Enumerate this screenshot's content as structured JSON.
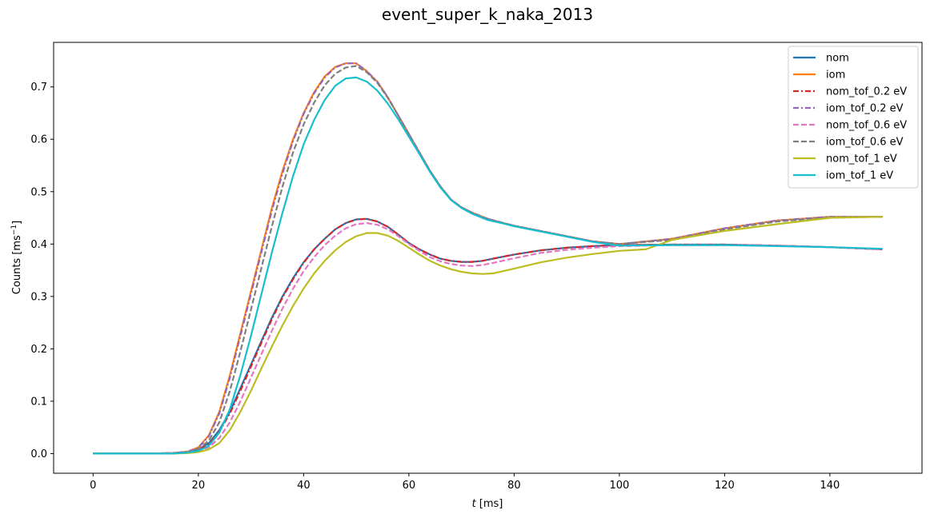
{
  "chart_data": {
    "type": "line",
    "title": "event_super_k_naka_2013",
    "xlabel_var": "t",
    "xlabel_unit": "[ms]",
    "ylabel_main": "Counts [ms",
    "ylabel_exp": "−1",
    "ylabel_close": "]",
    "xlim": [
      -7.5,
      157.5
    ],
    "ylim": [
      -0.0375,
      0.785
    ],
    "xticks": [
      0,
      20,
      40,
      60,
      80,
      100,
      120,
      140
    ],
    "yticks": [
      0.0,
      0.1,
      0.2,
      0.3,
      0.4,
      0.5,
      0.6,
      0.7
    ],
    "ytick_labels": [
      "0.0",
      "0.1",
      "0.2",
      "0.3",
      "0.4",
      "0.5",
      "0.6",
      "0.7"
    ],
    "legend_position": "upper right",
    "grid": false,
    "series": [
      {
        "name": "nom",
        "color": "#1f77b4",
        "dash": "solid",
        "x": [
          0,
          10,
          15,
          18,
          20,
          22,
          24,
          26,
          28,
          30,
          32,
          34,
          36,
          38,
          40,
          42,
          44,
          46,
          48,
          50,
          52,
          54,
          56,
          58,
          60,
          62,
          64,
          66,
          68,
          70,
          72,
          74,
          76,
          80,
          85,
          90,
          95,
          100,
          110,
          120,
          130,
          140,
          150
        ],
        "y": [
          0,
          0,
          0.001,
          0.003,
          0.008,
          0.02,
          0.045,
          0.08,
          0.125,
          0.17,
          0.215,
          0.26,
          0.3,
          0.335,
          0.365,
          0.39,
          0.41,
          0.428,
          0.44,
          0.447,
          0.448,
          0.443,
          0.433,
          0.418,
          0.402,
          0.39,
          0.38,
          0.372,
          0.368,
          0.366,
          0.366,
          0.368,
          0.372,
          0.38,
          0.388,
          0.393,
          0.396,
          0.398,
          0.399,
          0.399,
          0.397,
          0.394,
          0.39
        ]
      },
      {
        "name": "iom",
        "color": "#ff7f0e",
        "dash": "solid",
        "x": [
          0,
          10,
          15,
          18,
          20,
          22,
          24,
          26,
          28,
          30,
          32,
          34,
          36,
          38,
          40,
          42,
          44,
          46,
          48,
          50,
          52,
          54,
          56,
          58,
          60,
          62,
          64,
          66,
          68,
          70,
          72,
          75,
          78,
          80,
          85,
          90,
          95,
          100,
          110,
          120,
          130,
          140,
          150
        ],
        "y": [
          0,
          0,
          0.001,
          0.004,
          0.012,
          0.035,
          0.08,
          0.15,
          0.23,
          0.31,
          0.39,
          0.47,
          0.54,
          0.6,
          0.65,
          0.69,
          0.72,
          0.738,
          0.745,
          0.745,
          0.73,
          0.71,
          0.68,
          0.645,
          0.61,
          0.575,
          0.54,
          0.51,
          0.485,
          0.47,
          0.46,
          0.448,
          0.44,
          0.435,
          0.425,
          0.415,
          0.405,
          0.4,
          0.41,
          0.43,
          0.445,
          0.452,
          0.452
        ]
      },
      {
        "name": "nom_tof_0.2 eV",
        "color": "#d62728",
        "dash": "dashdot",
        "x": [
          0,
          10,
          15,
          18,
          20,
          22,
          24,
          26,
          28,
          30,
          32,
          34,
          36,
          38,
          40,
          42,
          44,
          46,
          48,
          50,
          52,
          54,
          56,
          58,
          60,
          62,
          64,
          66,
          68,
          70,
          72,
          74,
          76,
          80,
          85,
          90,
          95,
          100,
          110,
          120,
          130,
          140,
          150
        ],
        "y": [
          0,
          0,
          0.001,
          0.003,
          0.007,
          0.018,
          0.042,
          0.077,
          0.12,
          0.166,
          0.212,
          0.257,
          0.298,
          0.333,
          0.364,
          0.39,
          0.41,
          0.428,
          0.44,
          0.447,
          0.448,
          0.443,
          0.433,
          0.418,
          0.402,
          0.39,
          0.38,
          0.372,
          0.368,
          0.366,
          0.366,
          0.368,
          0.372,
          0.38,
          0.388,
          0.393,
          0.396,
          0.398,
          0.399,
          0.399,
          0.397,
          0.394,
          0.39
        ]
      },
      {
        "name": "iom_tof_0.2 eV",
        "color": "#9467bd",
        "dash": "dashdot",
        "x": [
          0,
          10,
          15,
          18,
          20,
          22,
          24,
          26,
          28,
          30,
          32,
          34,
          36,
          38,
          40,
          42,
          44,
          46,
          48,
          50,
          52,
          54,
          56,
          58,
          60,
          62,
          64,
          66,
          68,
          70,
          72,
          75,
          78,
          80,
          85,
          90,
          95,
          100,
          110,
          120,
          130,
          140,
          150
        ],
        "y": [
          0,
          0,
          0.001,
          0.004,
          0.011,
          0.033,
          0.077,
          0.145,
          0.225,
          0.305,
          0.385,
          0.465,
          0.535,
          0.597,
          0.648,
          0.688,
          0.718,
          0.737,
          0.745,
          0.745,
          0.73,
          0.71,
          0.68,
          0.645,
          0.61,
          0.575,
          0.54,
          0.51,
          0.485,
          0.47,
          0.46,
          0.448,
          0.44,
          0.435,
          0.425,
          0.415,
          0.405,
          0.4,
          0.41,
          0.43,
          0.445,
          0.452,
          0.452
        ]
      },
      {
        "name": "nom_tof_0.6 eV",
        "color": "#e377c2",
        "dash": "dashed",
        "x": [
          0,
          10,
          15,
          18,
          20,
          22,
          24,
          26,
          28,
          30,
          32,
          34,
          36,
          38,
          40,
          42,
          44,
          46,
          48,
          50,
          52,
          54,
          56,
          58,
          60,
          62,
          64,
          66,
          68,
          70,
          72,
          74,
          76,
          80,
          85,
          90,
          95,
          100,
          110,
          120,
          130,
          140,
          150
        ],
        "y": [
          0,
          0,
          0,
          0.002,
          0.005,
          0.012,
          0.03,
          0.06,
          0.1,
          0.145,
          0.19,
          0.235,
          0.277,
          0.315,
          0.348,
          0.375,
          0.398,
          0.416,
          0.43,
          0.438,
          0.44,
          0.437,
          0.428,
          0.415,
          0.4,
          0.387,
          0.375,
          0.367,
          0.362,
          0.359,
          0.358,
          0.36,
          0.364,
          0.373,
          0.383,
          0.389,
          0.393,
          0.396,
          0.398,
          0.398,
          0.397,
          0.394,
          0.39
        ]
      },
      {
        "name": "iom_tof_0.6 eV",
        "color": "#7f7f7f",
        "dash": "dashed",
        "x": [
          0,
          10,
          15,
          18,
          20,
          22,
          24,
          26,
          28,
          30,
          32,
          34,
          36,
          38,
          40,
          42,
          44,
          46,
          48,
          50,
          52,
          54,
          56,
          58,
          60,
          62,
          64,
          66,
          68,
          70,
          72,
          75,
          78,
          80,
          85,
          90,
          95,
          100,
          110,
          120,
          130,
          140,
          150
        ],
        "y": [
          0,
          0,
          0,
          0.003,
          0.008,
          0.025,
          0.06,
          0.12,
          0.195,
          0.275,
          0.355,
          0.435,
          0.51,
          0.575,
          0.628,
          0.67,
          0.703,
          0.725,
          0.737,
          0.74,
          0.728,
          0.708,
          0.679,
          0.645,
          0.61,
          0.575,
          0.54,
          0.51,
          0.485,
          0.47,
          0.46,
          0.448,
          0.44,
          0.435,
          0.425,
          0.415,
          0.405,
          0.4,
          0.408,
          0.428,
          0.443,
          0.451,
          0.452
        ]
      },
      {
        "name": "nom_tof_1 eV",
        "color": "#bcbd22",
        "dash": "solid",
        "x": [
          0,
          10,
          15,
          18,
          20,
          22,
          24,
          26,
          28,
          30,
          32,
          34,
          36,
          38,
          40,
          42,
          44,
          46,
          48,
          50,
          52,
          54,
          56,
          58,
          60,
          62,
          64,
          66,
          68,
          70,
          72,
          74,
          76,
          80,
          85,
          90,
          95,
          100,
          105,
          110,
          120,
          130,
          140,
          150
        ],
        "y": [
          0,
          0,
          0,
          0.001,
          0.003,
          0.008,
          0.02,
          0.045,
          0.08,
          0.12,
          0.163,
          0.205,
          0.245,
          0.282,
          0.315,
          0.344,
          0.368,
          0.388,
          0.404,
          0.415,
          0.421,
          0.421,
          0.416,
          0.406,
          0.393,
          0.38,
          0.368,
          0.359,
          0.352,
          0.347,
          0.344,
          0.343,
          0.344,
          0.353,
          0.365,
          0.374,
          0.381,
          0.387,
          0.39,
          0.408,
          0.425,
          0.438,
          0.45,
          0.452
        ]
      },
      {
        "name": "iom_tof_1 eV",
        "color": "#17becf",
        "dash": "solid",
        "x": [
          0,
          10,
          15,
          18,
          20,
          22,
          24,
          26,
          28,
          30,
          32,
          34,
          36,
          38,
          40,
          42,
          44,
          46,
          48,
          50,
          52,
          54,
          56,
          58,
          60,
          62,
          64,
          66,
          68,
          70,
          72,
          75,
          78,
          80,
          85,
          90,
          95,
          100,
          110,
          120,
          130,
          140,
          150
        ],
        "y": [
          0,
          0,
          0,
          0.002,
          0.005,
          0.015,
          0.04,
          0.085,
          0.15,
          0.225,
          0.305,
          0.385,
          0.46,
          0.53,
          0.59,
          0.637,
          0.675,
          0.702,
          0.716,
          0.718,
          0.71,
          0.693,
          0.668,
          0.638,
          0.605,
          0.572,
          0.538,
          0.508,
          0.484,
          0.469,
          0.458,
          0.446,
          0.439,
          0.434,
          0.424,
          0.414,
          0.404,
          0.397,
          0.398,
          0.398,
          0.396,
          0.394,
          0.391
        ]
      }
    ]
  }
}
